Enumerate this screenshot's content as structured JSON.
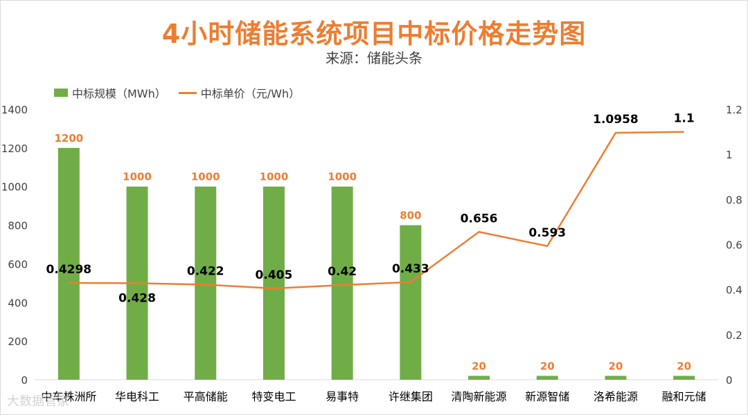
{
  "title": "4小时储能系统项目中标价格走势图",
  "subtitle": "来源：储能头条",
  "watermark": "大数据管家",
  "colors": {
    "bar": "#70ad47",
    "line": "#ed7d31",
    "barLabel": "#ed7d31",
    "lineLabel": "#000000",
    "axis": "#404040"
  },
  "chart_data": {
    "type": "bar",
    "title": "4小时储能系统项目中标价格走势图",
    "subtitle": "来源：储能头条",
    "categories": [
      "中车株洲所",
      "华电科工",
      "平高储能",
      "特变电工",
      "易事特",
      "许继集团",
      "清陶新能源",
      "新源智储",
      "洛希能源",
      "融和元储"
    ],
    "series": [
      {
        "name": "中标规模（MWh）",
        "type": "bar",
        "axis": "left",
        "values": [
          1200,
          1000,
          1000,
          1000,
          1000,
          800,
          20,
          20,
          20,
          20
        ],
        "labels": [
          "1200",
          "1000",
          "1000",
          "1000",
          "1000",
          "800",
          "20",
          "20",
          "20",
          "20"
        ]
      },
      {
        "name": "中标单价（元/Wh）",
        "type": "line",
        "axis": "right",
        "values": [
          0.4298,
          0.428,
          0.422,
          0.405,
          0.42,
          0.433,
          0.656,
          0.593,
          1.0958,
          1.1
        ],
        "labels": [
          "0.4298",
          "0.428",
          "0.422",
          "0.405",
          "0.42",
          "0.433",
          "0.656",
          "0.593",
          "1.0958",
          "1.1"
        ]
      }
    ],
    "y_left": {
      "min": 0,
      "max": 1400,
      "ticks": [
        "0",
        "200",
        "400",
        "600",
        "800",
        "1000",
        "1200",
        "1400"
      ]
    },
    "y_right": {
      "min": 0,
      "max": 1.2,
      "ticks": [
        "0",
        "0.2",
        "0.4",
        "0.6",
        "0.8",
        "1",
        "1.2"
      ]
    },
    "grid": false,
    "legend": "top-left"
  }
}
